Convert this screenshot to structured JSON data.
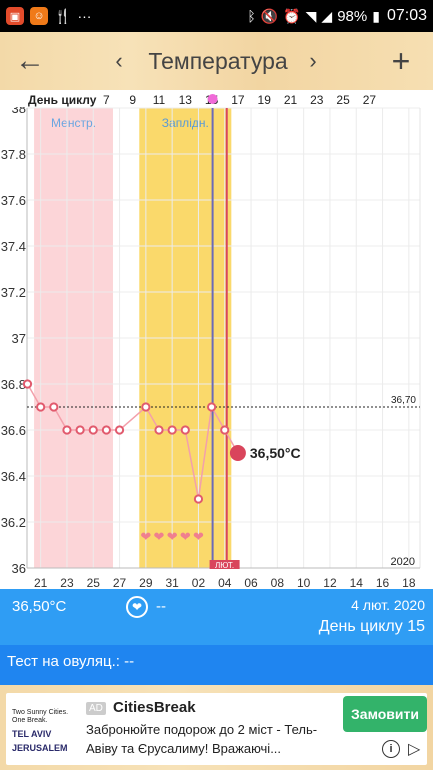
{
  "status_bar": {
    "icons": [
      "app-icon-1",
      "app-icon-2",
      "fork-knife-icon",
      "more-dots-icon",
      "bluetooth-icon",
      "mute-icon",
      "alarm-icon",
      "wifi-icon",
      "signal-icon",
      "battery-icon"
    ],
    "battery": "98%",
    "time": "07:03"
  },
  "header": {
    "title": "Температура"
  },
  "chart_data": {
    "type": "line",
    "header_label": "День циклу",
    "top_day_labels": [
      "7",
      "9",
      "11",
      "13",
      "15",
      "17",
      "19",
      "21",
      "23",
      "25",
      "27"
    ],
    "x_date_labels": [
      "21",
      "23",
      "25",
      "27",
      "29",
      "31",
      "02",
      "04",
      "06",
      "08",
      "10",
      "12",
      "14",
      "16",
      "18"
    ],
    "y_ticks": [
      "36",
      "36.2",
      "36.4",
      "36.6",
      "36.8",
      "37",
      "37.2",
      "37.4",
      "37.6",
      "37.8",
      "38"
    ],
    "ylim": [
      36,
      38
    ],
    "temperatures": [
      36.8,
      36.7,
      36.7,
      36.6,
      36.6,
      36.6,
      36.6,
      36.6,
      null,
      36.7,
      36.6,
      36.6,
      36.6,
      36.3,
      36.7,
      36.6,
      36.5
    ],
    "current_value_label": "36,50°C",
    "coverline_label": "36,70",
    "coverline": 36.7,
    "year_label": "2020",
    "zones": [
      {
        "label": "Менстр.",
        "start_index": 0.5,
        "end_index": 6.5,
        "color": "#fcd5d8",
        "text_color": "#6aa6e0"
      },
      {
        "label": "Заплідн.",
        "start_index": 8.5,
        "end_index": 15.5,
        "color": "#fad96b",
        "text_color": "#5a9ad6"
      }
    ],
    "hearts_at": [
      9,
      10,
      11,
      12,
      13
    ],
    "today_index": 15,
    "ovulation_index": 16,
    "ovulation_label": "ЛЮТ."
  },
  "info": {
    "current_temp": "36,50°C",
    "sex_value": "--",
    "date": "4 лют. 2020",
    "cycle_day": "День циклу 15",
    "ovulation_test": "Тест на овуляц.: --"
  },
  "ad": {
    "badge": "AD",
    "title": "CitiesBreak",
    "text": "Забронюйте подорож до 2 міст - Тель-Авіву та Єрусалиму! Вражаючі...",
    "cta": "Замовити",
    "logo_line1": "Two Sunny Cities.",
    "logo_line2": "One Break.",
    "logo_line3": "TEL AVIV",
    "logo_line4": "JERUSALEM"
  }
}
